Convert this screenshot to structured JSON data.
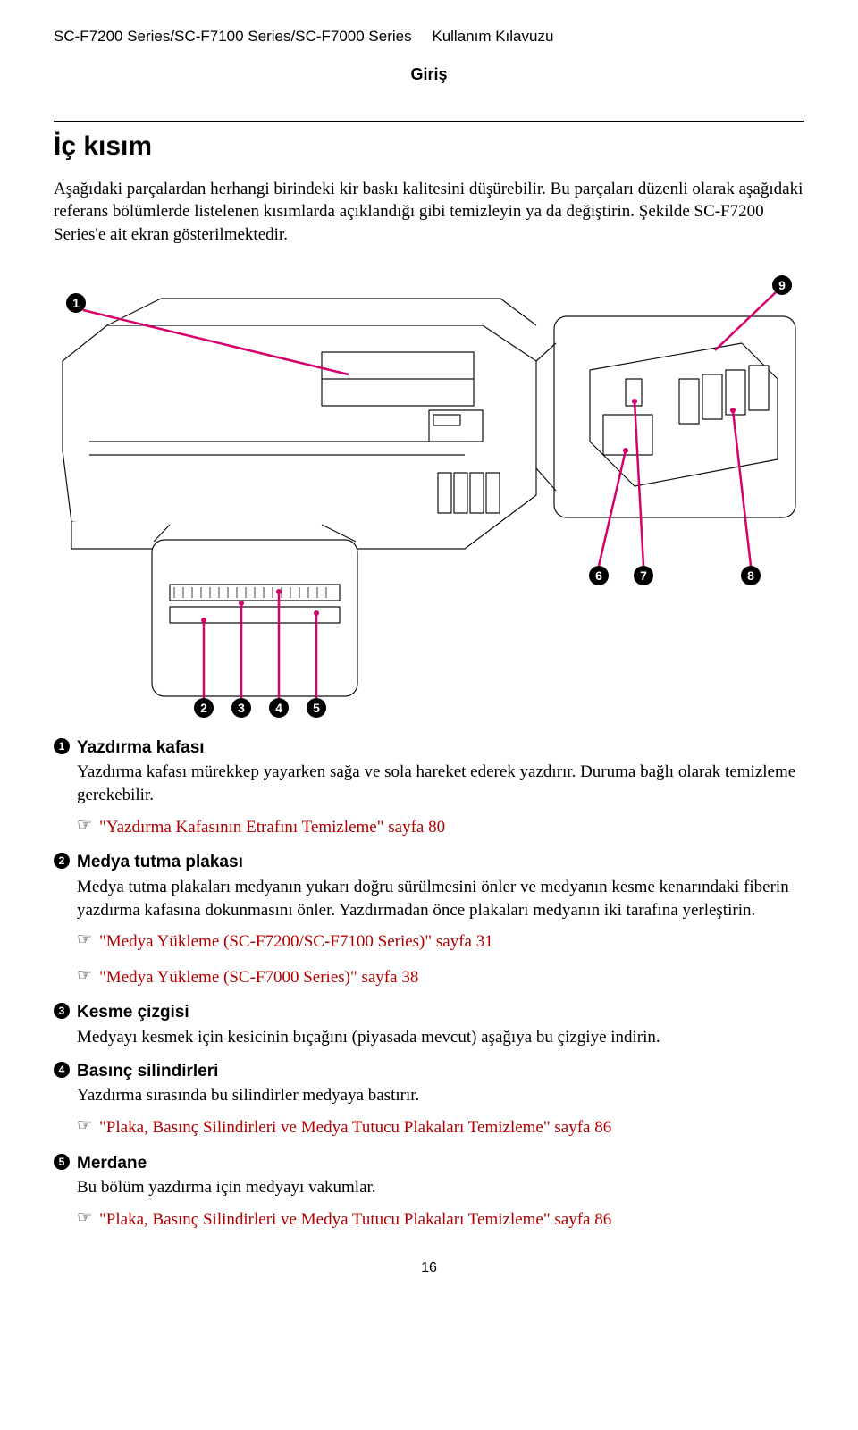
{
  "header": {
    "product_line": "SC-F7200 Series/SC-F7100 Series/SC-F7000 Series",
    "manual_label": "Kullanım Kılavuzu",
    "section": "Giriş"
  },
  "heading": "İç kısım",
  "intro_text": "Aşağıdaki parçalardan herhangi birindeki kir baskı kalitesini düşürebilir. Bu parçaları düzenli olarak aşağıdaki referans bölümlerde listelenen kısımlarda açıklandığı gibi temizleyin ya da değiştirin. Şekilde SC-F7200 Series'e ait ekran gösterilmektedir.",
  "diagram": {
    "leader_color": "#d6006c",
    "callouts": [
      "1",
      "2",
      "3",
      "4",
      "5",
      "6",
      "7",
      "8",
      "9"
    ]
  },
  "items": [
    {
      "num": "1",
      "title": "Yazdırma kafası",
      "body": "Yazdırma kafası mürekkep yayarken sağa ve sola hareket ederek yazdırır. Duruma bağlı olarak temizleme gerekebilir.",
      "refs": [
        {
          "text": "\"Yazdırma Kafasının Etrafını Temizleme\" sayfa 80"
        }
      ]
    },
    {
      "num": "2",
      "title": "Medya tutma plakası",
      "body": "Medya tutma plakaları medyanın yukarı doğru sürülmesini önler ve medyanın kesme kenarındaki fiberin yazdırma kafasına dokunmasını önler. Yazdırmadan önce plakaları medyanın iki tarafına yerleştirin.",
      "refs": [
        {
          "text": "\"Medya Yükleme (SC-F7200/SC-F7100 Series)\" sayfa 31"
        },
        {
          "text": "\"Medya Yükleme (SC-F7000 Series)\" sayfa 38"
        }
      ]
    },
    {
      "num": "3",
      "title": "Kesme çizgisi",
      "body": "Medyayı kesmek için kesicinin bıçağını (piyasada mevcut) aşağıya bu çizgiye indirin.",
      "refs": []
    },
    {
      "num": "4",
      "title": "Basınç silindirleri",
      "body": "Yazdırma sırasında bu silindirler medyaya bastırır.",
      "refs": [
        {
          "text": "\"Plaka, Basınç Silindirleri ve Medya Tutucu Plakaları Temizleme\" sayfa 86"
        }
      ]
    },
    {
      "num": "5",
      "title": "Merdane",
      "body": "Bu bölüm yazdırma için medyayı vakumlar.",
      "refs": [
        {
          "text": "\"Plaka, Basınç Silindirleri ve Medya Tutucu Plakaları Temizleme\" sayfa 86"
        }
      ]
    }
  ],
  "ref_color": "#b00000",
  "page_number": "16"
}
